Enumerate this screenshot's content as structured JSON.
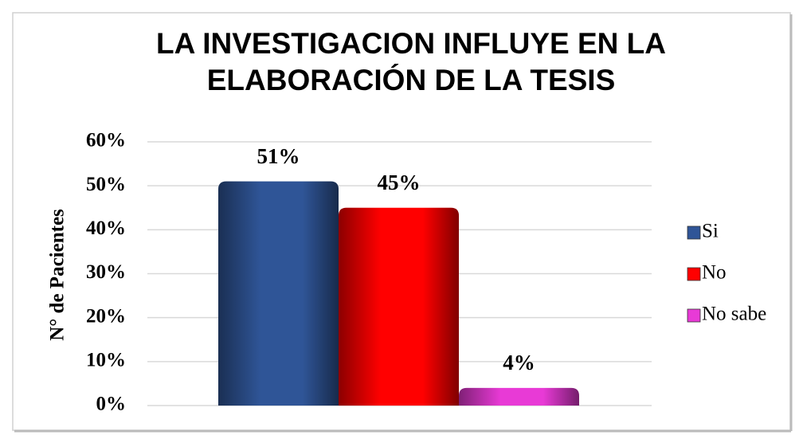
{
  "chart_data": {
    "type": "bar",
    "title": "LA INVESTIGACION INFLUYE EN LA ELABORACIÓN DE LA TESIS",
    "y_label": "N° de Pacientes",
    "categories": [
      null
    ],
    "series": [
      {
        "name": "Si",
        "color": "#2f5597",
        "values": [
          51
        ],
        "value_labels": [
          "51%"
        ]
      },
      {
        "name": "No",
        "color": "#ff0000",
        "values": [
          45
        ],
        "value_labels": [
          "45%"
        ]
      },
      {
        "name": "No sabe",
        "color": "#e83ad6",
        "values": [
          4
        ],
        "value_labels": [
          "4%"
        ]
      }
    ],
    "ylim": [
      0,
      60
    ],
    "yticks": [
      {
        "value": 0,
        "label": "0%"
      },
      {
        "value": 10,
        "label": "10%"
      },
      {
        "value": 20,
        "label": "20%"
      },
      {
        "value": 30,
        "label": "30%"
      },
      {
        "value": 40,
        "label": "40%"
      },
      {
        "value": 50,
        "label": "50%"
      },
      {
        "value": 60,
        "label": "60%"
      }
    ],
    "grid": true,
    "legend": "right"
  }
}
